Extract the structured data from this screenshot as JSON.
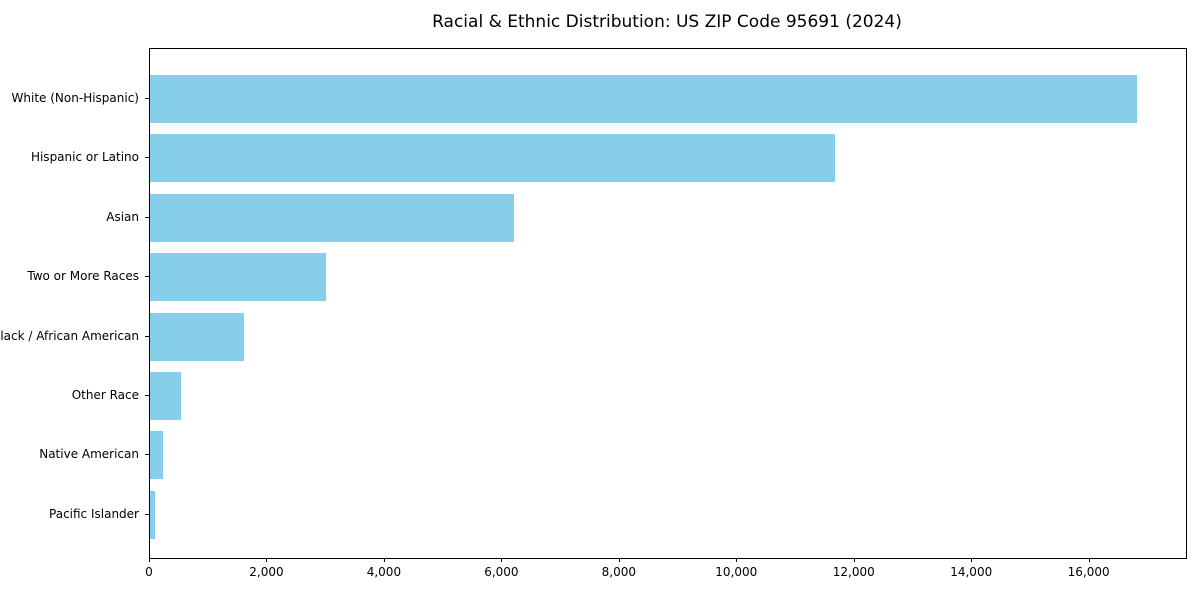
{
  "title": "Racial & Ethnic Distribution: US ZIP Code 95691 (2024)",
  "chart_data": {
    "type": "bar",
    "orientation": "horizontal",
    "title": "Racial & Ethnic Distribution: US ZIP Code 95691 (2024)",
    "categories": [
      "White (Non-Hispanic)",
      "Hispanic or Latino",
      "Asian",
      "Two or More Races",
      "Black / African American",
      "Other Race",
      "Native American",
      "Pacific Islander"
    ],
    "values": [
      16800,
      11670,
      6190,
      2990,
      1600,
      530,
      220,
      85
    ],
    "xlabel": "",
    "ylabel": "",
    "xlim": [
      0,
      17640
    ],
    "x_ticks": [
      0,
      2000,
      4000,
      6000,
      8000,
      10000,
      12000,
      14000,
      16000
    ],
    "x_tick_labels": [
      "0",
      "2,000",
      "4,000",
      "6,000",
      "8,000",
      "10,000",
      "12,000",
      "14,000",
      "16,000"
    ],
    "bar_color": "#87CEEB",
    "axis_color": "#000000",
    "grid": false,
    "legend_position": "none"
  }
}
